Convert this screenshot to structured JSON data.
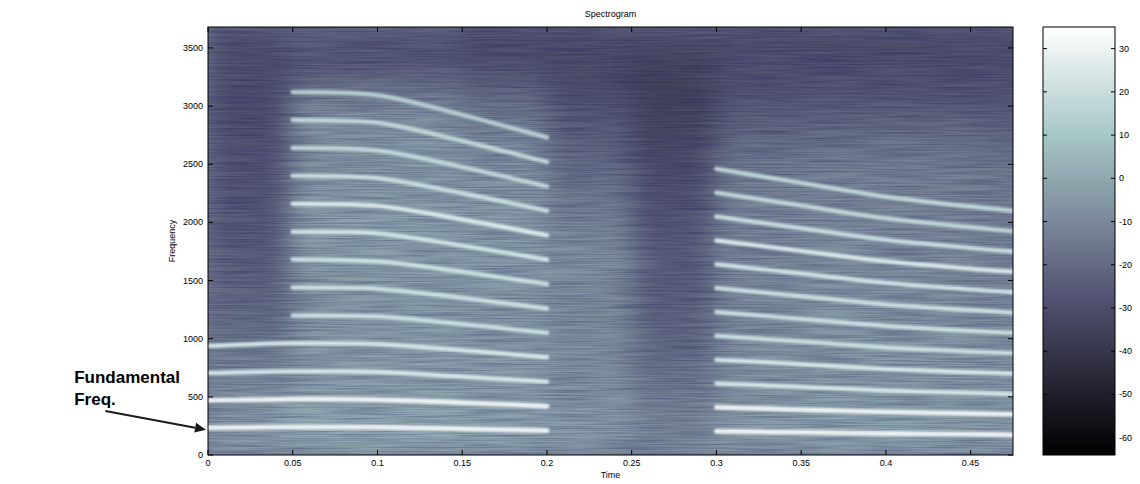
{
  "chart_data": {
    "type": "spectrogram",
    "title": "Spectrogram",
    "x_label": "Time",
    "y_label": "Frequency",
    "xlim": [
      0,
      0.475
    ],
    "ylim": [
      0,
      3680
    ],
    "xticks": [
      0,
      0.05,
      0.1,
      0.15,
      0.2,
      0.25,
      0.3,
      0.35,
      0.4,
      0.45
    ],
    "yticks": [
      0,
      500,
      1000,
      1500,
      2000,
      2500,
      3000,
      3500
    ],
    "x_edges": [
      0,
      0.05,
      0.1,
      0.15,
      0.2,
      0.25,
      0.3,
      0.35,
      0.4,
      0.45,
      0.5
    ],
    "y_edges": [
      0,
      250,
      500,
      750,
      1000,
      1250,
      1500,
      1750,
      2000,
      2250,
      2500,
      2750,
      3000,
      3250,
      3500,
      3750
    ],
    "cells": [
      [
        -2,
        2,
        2,
        0,
        -2,
        -8,
        -2,
        0,
        0,
        -2
      ],
      [
        -4,
        0,
        0,
        -2,
        -4,
        -10,
        -4,
        -2,
        -3,
        -4
      ],
      [
        -8,
        -2,
        -2,
        -3,
        -6,
        -14,
        -6,
        -4,
        -4,
        -5
      ],
      [
        -12,
        -3,
        -2,
        -3,
        -6,
        -18,
        -6,
        -4,
        -4,
        -6
      ],
      [
        -18,
        -4,
        -3,
        -4,
        -7,
        -20,
        -8,
        -5,
        -6,
        -8
      ],
      [
        -20,
        -4,
        -3,
        -4,
        -8,
        -22,
        -8,
        -6,
        -7,
        -9
      ],
      [
        -22,
        -3,
        -2,
        -3,
        -6,
        -22,
        -9,
        -7,
        -8,
        -10
      ],
      [
        -24,
        -2,
        -2,
        -3,
        -8,
        -24,
        -10,
        -8,
        -9,
        -11
      ],
      [
        -25,
        -2,
        -2,
        -4,
        -12,
        -26,
        -10,
        -9,
        -10,
        -12
      ],
      [
        -26,
        -5,
        -4,
        -6,
        -16,
        -28,
        -12,
        -10,
        -11,
        -13
      ],
      [
        -27,
        -6,
        -4,
        -8,
        -20,
        -30,
        -16,
        -14,
        -14,
        -16
      ],
      [
        -28,
        -6,
        -6,
        -12,
        -24,
        -32,
        -22,
        -20,
        -20,
        -22
      ],
      [
        -28,
        -14,
        -14,
        -20,
        -28,
        -34,
        -26,
        -26,
        -26,
        -26
      ],
      [
        -28,
        -26,
        -26,
        -28,
        -30,
        -32,
        -28,
        -28,
        -28,
        -28
      ],
      [
        -26,
        -22,
        -24,
        -28,
        -28,
        -28,
        -28,
        -28,
        -28,
        -28
      ]
    ],
    "x": [
      0,
      0.05,
      0.1,
      0.15,
      0.2,
      0.25,
      0.3,
      0.35,
      0.4,
      0.45,
      0.475
    ],
    "series": [
      {
        "color": "#f6fcfc",
        "values": [
          235,
          240,
          238,
          225,
          210,
          null,
          205,
          195,
          185,
          178,
          175
        ]
      },
      {
        "color": "#f6fcfc",
        "values": [
          470,
          480,
          476,
          450,
          420,
          null,
          410,
          390,
          370,
          356,
          350
        ]
      },
      {
        "color": "#dcefef",
        "values": [
          705,
          720,
          714,
          675,
          630,
          null,
          615,
          585,
          555,
          534,
          525
        ]
      },
      {
        "color": "#dcefef",
        "values": [
          940,
          960,
          952,
          900,
          840,
          null,
          820,
          780,
          740,
          712,
          700
        ]
      },
      {
        "color": "#d2e8e8",
        "values": [
          null,
          1200,
          1190,
          1125,
          1050,
          null,
          1025,
          975,
          925,
          890,
          875
        ]
      },
      {
        "color": "#d2e8e8",
        "values": [
          null,
          1440,
          1428,
          1350,
          1260,
          null,
          1230,
          1170,
          1110,
          1068,
          1050
        ]
      },
      {
        "color": "#d2e8e8",
        "values": [
          null,
          1680,
          1666,
          1575,
          1470,
          null,
          1435,
          1365,
          1295,
          1246,
          1225
        ]
      },
      {
        "color": "#d6ecec",
        "values": [
          null,
          1920,
          1904,
          1800,
          1680,
          null,
          1640,
          1560,
          1480,
          1424,
          1400
        ]
      },
      {
        "color": "#e2f2f2",
        "values": [
          null,
          2160,
          2142,
          2025,
          1890,
          null,
          1845,
          1755,
          1665,
          1602,
          1575
        ]
      },
      {
        "color": "#cfe6e6",
        "values": [
          null,
          2400,
          2380,
          2250,
          2100,
          null,
          2050,
          1950,
          1850,
          1780,
          1750
        ]
      },
      {
        "color": "#c6dfdf",
        "values": [
          null,
          2640,
          2618,
          2475,
          2310,
          null,
          2255,
          2145,
          2035,
          1958,
          1925
        ]
      },
      {
        "color": "#c6dfdf",
        "values": [
          null,
          2880,
          2856,
          2700,
          2520,
          null,
          2460,
          2340,
          2220,
          2136,
          2100
        ]
      },
      {
        "color": "#bcd7d7",
        "values": [
          null,
          3120,
          3094,
          2925,
          2730,
          null,
          null,
          null,
          null,
          null,
          null
        ]
      }
    ],
    "colorbar": {
      "range": [
        -64,
        35
      ],
      "ticks": [
        -60,
        -50,
        -40,
        -30,
        -20,
        -10,
        0,
        10,
        20,
        30
      ]
    },
    "annotation": "Fundamental Freq."
  }
}
